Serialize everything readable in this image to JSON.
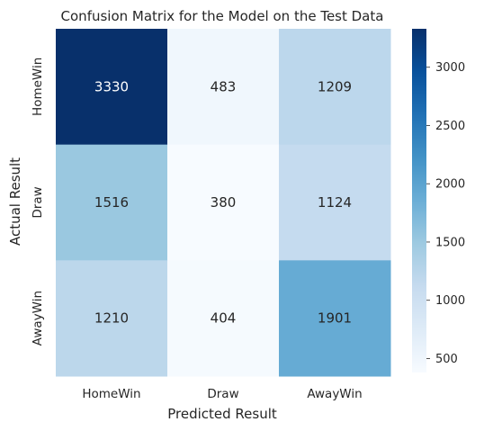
{
  "chart_data": {
    "type": "heatmap",
    "title": "Confusion Matrix for the Model on the Test Data",
    "xlabel": "Predicted Result",
    "ylabel": "Actual Result",
    "x_categories": [
      "HomeWin",
      "Draw",
      "AwayWin"
    ],
    "y_categories": [
      "HomeWin",
      "Draw",
      "AwayWin"
    ],
    "values": [
      [
        3330,
        483,
        1209
      ],
      [
        1516,
        380,
        1124
      ],
      [
        1210,
        404,
        1901
      ]
    ],
    "colormap": "Blues",
    "colorbar": {
      "vmin": 380,
      "vmax": 3330,
      "ticks": [
        500,
        1000,
        1500,
        2000,
        2500,
        3000
      ],
      "tick_labels": [
        "500",
        "1000",
        "1500",
        "2000",
        "2500",
        "3000"
      ]
    }
  },
  "colors": {
    "low": "#f7fbff",
    "high": "#08306b",
    "text_dark": "#262626",
    "text_light": "#ffffff"
  }
}
